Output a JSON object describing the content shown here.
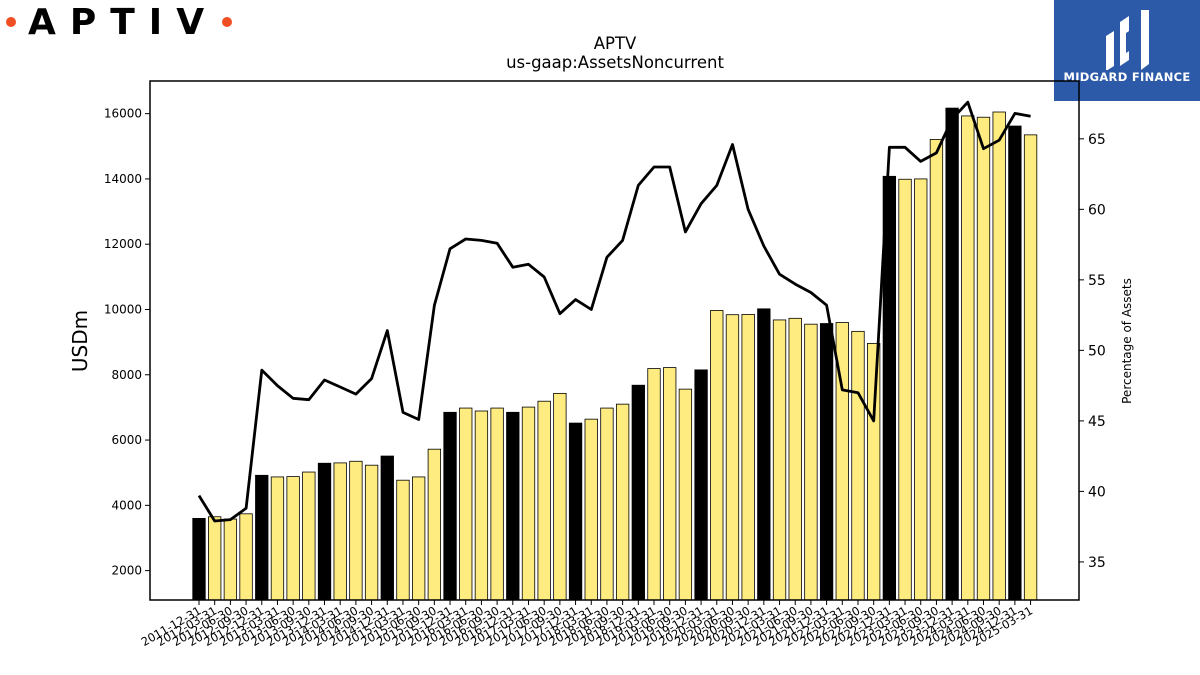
{
  "branding": {
    "company_logo_text": "APTIV",
    "partner_logo_text": "MIDGARD FINANCE"
  },
  "chart_data": {
    "type": "bar",
    "title": "APTV",
    "subtitle": "us-gaap:AssetsNoncurrent",
    "ylabel": "USDm",
    "y2label": "Percentage of Assets",
    "ylim": [
      1100,
      17000
    ],
    "y2lim": [
      32.3,
      69.1
    ],
    "yticks": [
      "2000",
      "4000",
      "6000",
      "8000",
      "10000",
      "12000",
      "14000",
      "16000"
    ],
    "y2ticks": [
      "35",
      "40",
      "45",
      "50",
      "55",
      "60",
      "65"
    ],
    "bar_colors": {
      "annual": "#000000",
      "quarterly": "#ffec80"
    },
    "line_color": "#000000",
    "categories": [
      "2011-12-31",
      "2012-03-31",
      "2012-06-30",
      "2012-09-30",
      "2012-12-31",
      "2013-03-31",
      "2013-06-30",
      "2013-09-30",
      "2013-12-31",
      "2014-03-31",
      "2014-06-30",
      "2014-09-30",
      "2014-12-31",
      "2015-03-31",
      "2015-06-30",
      "2015-09-30",
      "2015-12-31",
      "2016-03-31",
      "2016-06-30",
      "2016-09-30",
      "2016-12-31",
      "2017-03-31",
      "2017-06-30",
      "2017-09-30",
      "2017-12-31",
      "2018-03-31",
      "2018-06-30",
      "2018-09-30",
      "2018-12-31",
      "2019-03-31",
      "2019-06-30",
      "2019-09-30",
      "2019-12-31",
      "2020-03-31",
      "2020-06-30",
      "2020-09-30",
      "2020-12-31",
      "2021-03-31",
      "2021-06-30",
      "2021-09-30",
      "2021-12-31",
      "2022-03-31",
      "2022-06-30",
      "2022-09-30",
      "2022-12-31",
      "2023-03-31",
      "2023-06-30",
      "2023-09-30",
      "2023-12-31",
      "2024-03-31",
      "2024-06-30",
      "2024-09-30",
      "2024-12-31",
      "2025-03-31"
    ],
    "series": [
      {
        "type": "bar",
        "values": [
          3600,
          3650,
          3580,
          3740,
          4920,
          4870,
          4880,
          5020,
          5290,
          5300,
          5350,
          5230,
          5510,
          4770,
          4870,
          5720,
          6850,
          6980,
          6890,
          6980,
          6850,
          7010,
          7190,
          7430,
          6520,
          6640,
          6980,
          7100,
          7680,
          8190,
          8220,
          7560,
          8150,
          9970,
          9840,
          9850,
          10020,
          9680,
          9730,
          9550,
          9570,
          9600,
          9330,
          8960,
          14080,
          13990,
          14000,
          15210,
          16170,
          15930,
          15890,
          16050,
          15620,
          15350
        ],
        "annual_flags": [
          1,
          0,
          0,
          0,
          1,
          0,
          0,
          0,
          1,
          0,
          0,
          0,
          1,
          0,
          0,
          0,
          1,
          0,
          0,
          0,
          1,
          0,
          0,
          0,
          1,
          0,
          0,
          0,
          1,
          0,
          0,
          0,
          1,
          0,
          0,
          0,
          1,
          0,
          0,
          0,
          1,
          0,
          0,
          0,
          1,
          0,
          0,
          0,
          1,
          0,
          0,
          0,
          1,
          0
        ]
      },
      {
        "type": "line",
        "axis": "right",
        "values": [
          39.7,
          37.9,
          38.0,
          38.8,
          48.6,
          47.5,
          46.6,
          46.5,
          47.9,
          47.4,
          46.9,
          48.0,
          51.4,
          45.6,
          45.1,
          53.2,
          57.2,
          57.9,
          57.8,
          57.6,
          55.9,
          56.1,
          55.2,
          52.6,
          53.6,
          52.9,
          56.6,
          57.8,
          61.7,
          63.0,
          63.0,
          58.4,
          60.4,
          61.7,
          64.6,
          60.0,
          57.4,
          55.4,
          54.7,
          54.1,
          53.2,
          47.2,
          47.0,
          45.0,
          64.4,
          64.4,
          63.4,
          64.0,
          66.4,
          67.6,
          64.3,
          64.9,
          66.8,
          66.6
        ]
      }
    ]
  }
}
